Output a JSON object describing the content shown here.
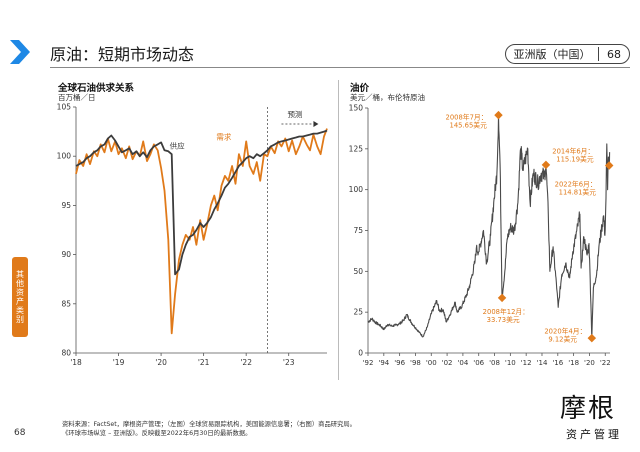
{
  "header": {
    "title": "原油：短期市场动态",
    "edition_label": "亚洲版（中国）",
    "page_number": "68"
  },
  "side_tab": {
    "label": "其他资产类别"
  },
  "page": {
    "number": "68"
  },
  "colors": {
    "accent": "#e07a1a",
    "dark": "#3c3c3c",
    "brand_blue": "#1e88e5"
  },
  "footnote": {
    "line1": "资料来源：FactSet，摩根资产管理；（左图）全球贸易跟踪机构，美国能源信息署；（右图）商品研究局。",
    "line2": "《环球市场纵览 – 亚洲版》。反映截至2022年6月30日的最新数据。"
  },
  "brand": {
    "name": "摩根",
    "sub": "资产管理"
  },
  "chart_data": [
    {
      "type": "line",
      "title": "全球石油供求关系",
      "ylabel": "百万桶／日",
      "xlabel": "",
      "ylim": [
        80,
        105
      ],
      "xlim": [
        2018.0,
        2023.9
      ],
      "yticks": [
        "105",
        "100",
        "95",
        "90",
        "85",
        "80"
      ],
      "xticks": [
        "'18",
        "'19",
        "'20",
        "'21",
        "'22",
        "'23"
      ],
      "annotations": {
        "forecast_label": "预测",
        "forecast_start": 2022.5
      },
      "series": [
        {
          "name": "需求",
          "color": "#e07a1a",
          "label_pos": [
            2021.3,
            101.7
          ],
          "points": [
            [
              2018.0,
              98.2
            ],
            [
              2018.08,
              99.6
            ],
            [
              2018.17,
              99.0
            ],
            [
              2018.25,
              100.2
            ],
            [
              2018.33,
              99.2
            ],
            [
              2018.42,
              100.5
            ],
            [
              2018.5,
              100.0
            ],
            [
              2018.58,
              101.2
            ],
            [
              2018.67,
              100.4
            ],
            [
              2018.75,
              101.8
            ],
            [
              2018.83,
              100.5
            ],
            [
              2018.92,
              101.5
            ],
            [
              2019.0,
              100.2
            ],
            [
              2019.08,
              100.8
            ],
            [
              2019.17,
              99.8
            ],
            [
              2019.25,
              101.0
            ],
            [
              2019.33,
              99.7
            ],
            [
              2019.42,
              100.5
            ],
            [
              2019.5,
              100.0
            ],
            [
              2019.58,
              101.5
            ],
            [
              2019.67,
              99.5
            ],
            [
              2019.75,
              100.2
            ],
            [
              2019.83,
              101.2
            ],
            [
              2019.92,
              100.6
            ],
            [
              2020.0,
              98.8
            ],
            [
              2020.08,
              96.5
            ],
            [
              2020.17,
              91.5
            ],
            [
              2020.25,
              82.0
            ],
            [
              2020.33,
              86.0
            ],
            [
              2020.42,
              89.5
            ],
            [
              2020.5,
              91.0
            ],
            [
              2020.58,
              92.0
            ],
            [
              2020.67,
              91.5
            ],
            [
              2020.75,
              92.8
            ],
            [
              2020.83,
              91.0
            ],
            [
              2020.92,
              93.5
            ],
            [
              2021.0,
              91.5
            ],
            [
              2021.08,
              93.0
            ],
            [
              2021.17,
              95.0
            ],
            [
              2021.25,
              96.0
            ],
            [
              2021.33,
              94.5
            ],
            [
              2021.42,
              97.0
            ],
            [
              2021.5,
              98.0
            ],
            [
              2021.58,
              97.5
            ],
            [
              2021.67,
              99.0
            ],
            [
              2021.75,
              97.2
            ],
            [
              2021.83,
              100.2
            ],
            [
              2021.92,
              99.0
            ],
            [
              2022.0,
              101.5
            ],
            [
              2022.08,
              99.0
            ],
            [
              2022.17,
              98.2
            ],
            [
              2022.25,
              99.4
            ],
            [
              2022.33,
              97.5
            ],
            [
              2022.42,
              100.2
            ],
            [
              2022.5,
              100.0
            ],
            [
              2022.58,
              101.0
            ],
            [
              2022.67,
              100.3
            ],
            [
              2022.75,
              101.5
            ],
            [
              2022.83,
              101.0
            ],
            [
              2022.92,
              101.8
            ],
            [
              2023.0,
              100.5
            ],
            [
              2023.08,
              101.6
            ],
            [
              2023.17,
              100.2
            ],
            [
              2023.25,
              101.0
            ],
            [
              2023.33,
              102.0
            ],
            [
              2023.42,
              101.2
            ],
            [
              2023.5,
              100.6
            ],
            [
              2023.58,
              102.2
            ],
            [
              2023.67,
              101.0
            ],
            [
              2023.75,
              100.2
            ],
            [
              2023.83,
              102.0
            ],
            [
              2023.9,
              102.8
            ]
          ]
        },
        {
          "name": "供应",
          "color": "#3c3c3c",
          "label_pos": [
            2020.2,
            100.8
          ],
          "points": [
            [
              2018.0,
              99.0
            ],
            [
              2018.08,
              99.2
            ],
            [
              2018.17,
              99.4
            ],
            [
              2018.25,
              99.8
            ],
            [
              2018.33,
              100.0
            ],
            [
              2018.42,
              100.4
            ],
            [
              2018.5,
              100.6
            ],
            [
              2018.58,
              101.0
            ],
            [
              2018.67,
              101.2
            ],
            [
              2018.75,
              101.8
            ],
            [
              2018.83,
              102.1
            ],
            [
              2018.92,
              101.6
            ],
            [
              2019.0,
              101.0
            ],
            [
              2019.08,
              100.4
            ],
            [
              2019.17,
              100.6
            ],
            [
              2019.25,
              100.8
            ],
            [
              2019.33,
              100.2
            ],
            [
              2019.42,
              100.5
            ],
            [
              2019.5,
              100.0
            ],
            [
              2019.58,
              100.4
            ],
            [
              2019.67,
              99.9
            ],
            [
              2019.75,
              100.6
            ],
            [
              2019.83,
              101.0
            ],
            [
              2019.92,
              101.2
            ],
            [
              2020.0,
              101.4
            ],
            [
              2020.08,
              100.6
            ],
            [
              2020.17,
              100.5
            ],
            [
              2020.25,
              100.2
            ],
            [
              2020.33,
              88.0
            ],
            [
              2020.42,
              88.5
            ],
            [
              2020.5,
              90.0
            ],
            [
              2020.58,
              91.0
            ],
            [
              2020.67,
              91.8
            ],
            [
              2020.75,
              92.0
            ],
            [
              2020.83,
              92.5
            ],
            [
              2020.92,
              93.2
            ],
            [
              2021.0,
              92.8
            ],
            [
              2021.08,
              93.2
            ],
            [
              2021.17,
              93.8
            ],
            [
              2021.25,
              94.6
            ],
            [
              2021.33,
              95.2
            ],
            [
              2021.42,
              96.0
            ],
            [
              2021.5,
              96.8
            ],
            [
              2021.58,
              97.2
            ],
            [
              2021.67,
              97.8
            ],
            [
              2021.75,
              98.4
            ],
            [
              2021.83,
              99.0
            ],
            [
              2021.92,
              99.4
            ],
            [
              2022.0,
              99.8
            ],
            [
              2022.08,
              100.0
            ],
            [
              2022.17,
              99.8
            ],
            [
              2022.25,
              100.2
            ],
            [
              2022.33,
              100.0
            ],
            [
              2022.42,
              100.3
            ],
            [
              2022.5,
              100.6
            ],
            [
              2022.58,
              101.0
            ],
            [
              2022.67,
              101.2
            ],
            [
              2022.75,
              101.4
            ],
            [
              2022.83,
              101.5
            ],
            [
              2022.92,
              101.6
            ],
            [
              2023.0,
              101.7
            ],
            [
              2023.08,
              101.8
            ],
            [
              2023.17,
              101.9
            ],
            [
              2023.25,
              102.0
            ],
            [
              2023.33,
              102.0
            ],
            [
              2023.42,
              102.1
            ],
            [
              2023.5,
              102.2
            ],
            [
              2023.58,
              102.3
            ],
            [
              2023.67,
              102.3
            ],
            [
              2023.75,
              102.4
            ],
            [
              2023.83,
              102.5
            ],
            [
              2023.9,
              102.6
            ]
          ]
        }
      ]
    },
    {
      "type": "line",
      "title": "油价",
      "ylabel": "美元／桶，布伦特原油",
      "xlabel": "",
      "ylim": [
        0,
        150
      ],
      "xlim": [
        1992.0,
        2022.6
      ],
      "yticks": [
        "150",
        "125",
        "100",
        "75",
        "50",
        "25",
        "0"
      ],
      "xticks": [
        "'92",
        "'94",
        "'96",
        "'98",
        "'00",
        "'02",
        "'04",
        "'06",
        "'08",
        "'10",
        "'12",
        "'14",
        "'16",
        "'18",
        "'20",
        "'22"
      ],
      "series": [
        {
          "name": "布伦特原油",
          "color": "#4a4a4a",
          "points": [
            [
              1992.0,
              19.0
            ],
            [
              1992.5,
              21.0
            ],
            [
              1993.0,
              18.5
            ],
            [
              1993.5,
              17.0
            ],
            [
              1994.0,
              14.5
            ],
            [
              1994.5,
              17.5
            ],
            [
              1995.0,
              16.5
            ],
            [
              1995.5,
              17.0
            ],
            [
              1996.0,
              18.0
            ],
            [
              1996.5,
              20.0
            ],
            [
              1996.9,
              23.5
            ],
            [
              1997.5,
              18.5
            ],
            [
              1998.0,
              15.5
            ],
            [
              1998.5,
              12.5
            ],
            [
              1998.95,
              10.0
            ],
            [
              1999.5,
              16.0
            ],
            [
              2000.0,
              24.0
            ],
            [
              2000.7,
              32.0
            ],
            [
              2001.0,
              26.0
            ],
            [
              2001.5,
              26.5
            ],
            [
              2001.9,
              19.0
            ],
            [
              2002.5,
              25.0
            ],
            [
              2003.0,
              31.0
            ],
            [
              2003.3,
              25.0
            ],
            [
              2003.9,
              29.0
            ],
            [
              2004.5,
              36.0
            ],
            [
              2004.9,
              42.0
            ],
            [
              2005.5,
              55.0
            ],
            [
              2005.7,
              64.0
            ],
            [
              2006.0,
              62.0
            ],
            [
              2006.6,
              75.0
            ],
            [
              2007.0,
              55.0
            ],
            [
              2007.5,
              72.0
            ],
            [
              2007.9,
              92.0
            ],
            [
              2008.3,
              110.0
            ],
            [
              2008.5,
              145.65
            ],
            [
              2008.7,
              115.0
            ],
            [
              2008.85,
              65.0
            ],
            [
              2008.95,
              33.73
            ],
            [
              2009.3,
              50.0
            ],
            [
              2009.6,
              70.0
            ],
            [
              2010.0,
              77.0
            ],
            [
              2010.5,
              75.0
            ],
            [
              2010.95,
              92.0
            ],
            [
              2011.3,
              125.0
            ],
            [
              2011.6,
              112.0
            ],
            [
              2012.2,
              125.0
            ],
            [
              2012.5,
              92.0
            ],
            [
              2012.9,
              110.0
            ],
            [
              2013.5,
              104.0
            ],
            [
              2013.9,
              110.0
            ],
            [
              2014.3,
              108.0
            ],
            [
              2014.5,
              115.19
            ],
            [
              2014.8,
              85.0
            ],
            [
              2015.0,
              50.0
            ],
            [
              2015.4,
              65.0
            ],
            [
              2015.9,
              38.0
            ],
            [
              2016.05,
              28.0
            ],
            [
              2016.5,
              48.0
            ],
            [
              2017.0,
              55.0
            ],
            [
              2017.5,
              46.0
            ],
            [
              2017.9,
              62.0
            ],
            [
              2018.3,
              72.0
            ],
            [
              2018.8,
              85.0
            ],
            [
              2018.95,
              52.0
            ],
            [
              2019.3,
              71.0
            ],
            [
              2019.7,
              60.0
            ],
            [
              2019.95,
              67.0
            ],
            [
              2020.1,
              45.0
            ],
            [
              2020.3,
              9.12
            ],
            [
              2020.5,
              40.0
            ],
            [
              2020.9,
              48.0
            ],
            [
              2021.2,
              65.0
            ],
            [
              2021.5,
              75.0
            ],
            [
              2021.8,
              84.0
            ],
            [
              2021.95,
              72.0
            ],
            [
              2022.1,
              95.0
            ],
            [
              2022.2,
              128.0
            ],
            [
              2022.3,
              100.0
            ],
            [
              2022.4,
              120.0
            ],
            [
              2022.5,
              114.81
            ],
            [
              2022.55,
              123.0
            ]
          ]
        }
      ],
      "annotations": [
        {
          "label": "2008年7月：",
          "value": "145.65美元",
          "x": 2008.5,
          "y": 145.65,
          "label_pos": [
            2001.8,
            143.0
          ]
        },
        {
          "label": "2008年12月：",
          "value": "33.73美元",
          "x": 2008.95,
          "y": 33.73,
          "label_pos": [
            2006.5,
            24.0
          ]
        },
        {
          "label": "2014年6月：",
          "value": "115.19美元",
          "x": 2014.5,
          "y": 115.19,
          "label_pos": [
            2015.3,
            122.0
          ]
        },
        {
          "label": "2022年6月：",
          "value": "114.81美元",
          "x": 2022.5,
          "y": 114.81,
          "label_pos": [
            2015.6,
            102.0
          ]
        },
        {
          "label": "2020年4月：",
          "value": "9.12美元",
          "x": 2020.3,
          "y": 9.12,
          "label_pos": [
            2014.3,
            12.0
          ]
        }
      ]
    }
  ]
}
